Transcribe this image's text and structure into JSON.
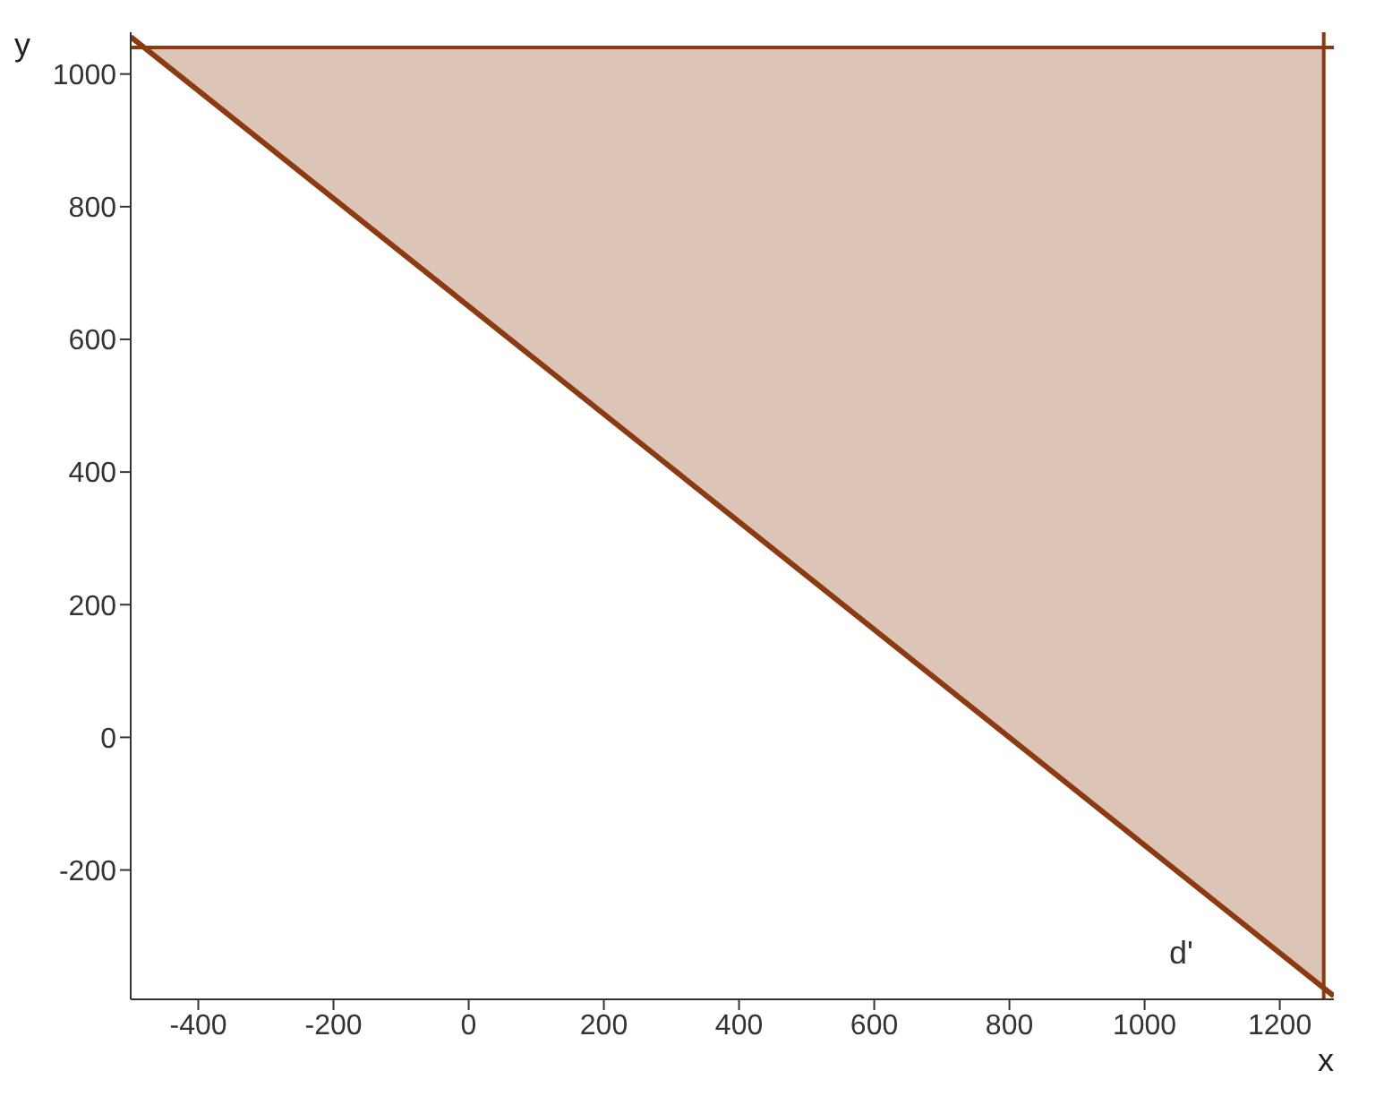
{
  "chart_data": {
    "type": "line",
    "xlabel": "x",
    "ylabel": "y",
    "xlim": [
      -500,
      1280
    ],
    "ylim": [
      -395,
      1063
    ],
    "xticks": [
      -400,
      -200,
      0,
      200,
      400,
      600,
      800,
      1000,
      1200
    ],
    "yticks": [
      -200,
      0,
      200,
      400,
      600,
      800,
      1000
    ],
    "grid": false,
    "marker": "none",
    "line_style": "solid",
    "series": [
      {
        "color": "#8b3a12",
        "x": [
          -500,
          -480,
          1265,
          1280
        ],
        "values": [
          1056,
          1040,
          -378,
          -390
        ],
        "lower": [
          null,
          1040,
          -378,
          null
        ],
        "upper": [
          null,
          1040,
          1040,
          null
        ]
      }
    ],
    "ref_lines": [
      {
        "axis": "y",
        "value": 1040,
        "color": "#8b3a12"
      },
      {
        "axis": "x",
        "value": 1265,
        "color": "#8b3a12"
      }
    ],
    "annotations": [
      "d'"
    ]
  }
}
